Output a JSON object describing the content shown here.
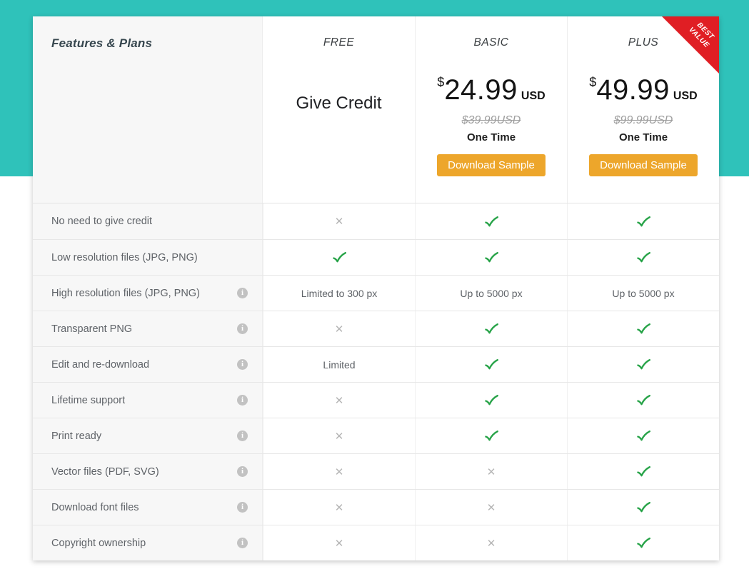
{
  "table": {
    "features_title": "Features & Plans",
    "plans": [
      {
        "name": "FREE",
        "tagline": "Give Credit"
      },
      {
        "name": "BASIC",
        "currency": "$",
        "amount": "24.99",
        "unit": "USD",
        "old_price": "$39.99USD",
        "billing": "One Time",
        "button_label": "Download Sample"
      },
      {
        "name": "PLUS",
        "currency": "$",
        "amount": "49.99",
        "unit": "USD",
        "old_price": "$99.99USD",
        "billing": "One Time",
        "button_label": "Download Sample",
        "badge": "BEST VALUE"
      }
    ],
    "rows": [
      {
        "feature": "No need to give credit",
        "info": false,
        "values": [
          {
            "type": "cross"
          },
          {
            "type": "check"
          },
          {
            "type": "check"
          }
        ]
      },
      {
        "feature": "Low resolution files (JPG, PNG)",
        "info": false,
        "values": [
          {
            "type": "check"
          },
          {
            "type": "check"
          },
          {
            "type": "check"
          }
        ]
      },
      {
        "feature": "High resolution files (JPG, PNG)",
        "info": true,
        "values": [
          {
            "type": "text",
            "value": "Limited to 300 px"
          },
          {
            "type": "text",
            "value": "Up to 5000 px"
          },
          {
            "type": "text",
            "value": "Up to 5000 px"
          }
        ]
      },
      {
        "feature": "Transparent PNG",
        "info": true,
        "values": [
          {
            "type": "cross"
          },
          {
            "type": "check"
          },
          {
            "type": "check"
          }
        ]
      },
      {
        "feature": "Edit and re-download",
        "info": true,
        "values": [
          {
            "type": "text",
            "value": "Limited"
          },
          {
            "type": "check"
          },
          {
            "type": "check"
          }
        ]
      },
      {
        "feature": "Lifetime support",
        "info": true,
        "values": [
          {
            "type": "cross"
          },
          {
            "type": "check"
          },
          {
            "type": "check"
          }
        ]
      },
      {
        "feature": "Print ready",
        "info": true,
        "values": [
          {
            "type": "cross"
          },
          {
            "type": "check"
          },
          {
            "type": "check"
          }
        ]
      },
      {
        "feature": "Vector files (PDF, SVG)",
        "info": true,
        "values": [
          {
            "type": "cross"
          },
          {
            "type": "cross"
          },
          {
            "type": "check"
          }
        ]
      },
      {
        "feature": "Download font files",
        "info": true,
        "values": [
          {
            "type": "cross"
          },
          {
            "type": "cross"
          },
          {
            "type": "check"
          }
        ]
      },
      {
        "feature": "Copyright ownership",
        "info": true,
        "values": [
          {
            "type": "cross"
          },
          {
            "type": "cross"
          },
          {
            "type": "check"
          }
        ]
      }
    ]
  },
  "colors": {
    "banner_teal": "#2fc2ba",
    "ribbon_red": "#e01e24",
    "button_orange": "#eda62b",
    "check_green": "#27a348",
    "cross_gray": "#b5b5b5"
  },
  "icons": {
    "info_glyph": "i",
    "cross_glyph": "✕",
    "check_name": "check-icon",
    "cross_name": "cross-icon",
    "info_name": "info-icon"
  }
}
